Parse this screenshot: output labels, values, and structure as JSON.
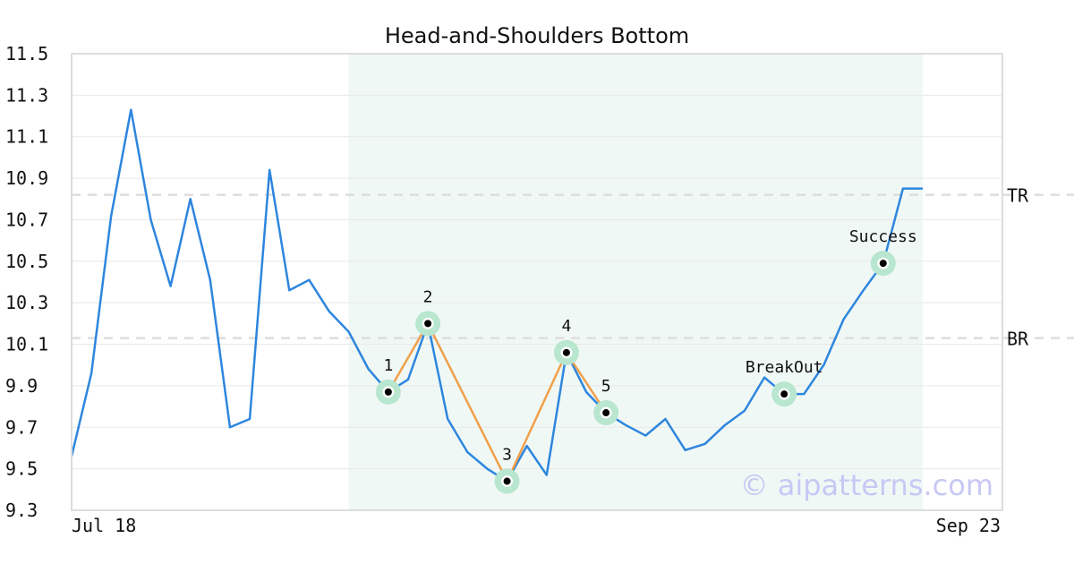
{
  "chart_data": {
    "type": "line",
    "title": "Head-and-Shoulders Bottom",
    "xlabel": "",
    "ylabel": "",
    "x_start_label": "Jul 18",
    "x_end_label": "Sep 23",
    "ylim": [
      9.3,
      11.5
    ],
    "yticks": [
      "9.3",
      "9.5",
      "9.7",
      "9.9",
      "10.1",
      "10.3",
      "10.5",
      "10.7",
      "10.9",
      "11.1",
      "11.3",
      "11.5"
    ],
    "grid": true,
    "colors": {
      "price": "#2e86de",
      "pattern": "#f0a04b",
      "highlight": "#f0f8f5",
      "marker_ring": "#b8e6cf",
      "ref_line": "#dddddd",
      "watermark": "#c8c8f4",
      "frame": "#dddddd"
    },
    "series": [
      {
        "values": [
          9.56,
          9.96,
          10.72,
          11.23,
          10.7,
          10.38,
          10.8,
          10.41,
          9.7,
          9.74,
          10.94,
          10.36,
          10.41,
          10.26,
          10.16,
          9.98,
          9.87,
          9.93,
          10.2,
          9.74,
          9.58,
          9.5,
          9.44,
          9.61,
          9.47,
          10.06,
          9.87,
          9.77,
          9.71,
          9.66,
          9.74,
          9.59,
          9.62,
          9.71,
          9.78,
          9.94,
          9.86,
          9.86,
          10.0,
          10.22,
          10.36,
          10.49,
          10.85,
          10.85
        ]
      }
    ],
    "highlight_range": [
      14,
      43
    ],
    "pattern_points": [
      {
        "label": "1",
        "index": 16,
        "value": 9.87
      },
      {
        "label": "2",
        "index": 18,
        "value": 10.2
      },
      {
        "label": "3",
        "index": 22,
        "value": 9.44
      },
      {
        "label": "4",
        "index": 25,
        "value": 10.06
      },
      {
        "label": "5",
        "index": 27,
        "value": 9.77
      }
    ],
    "event_points": [
      {
        "label": "BreakOut",
        "index": 36,
        "value": 9.86
      },
      {
        "label": "Success",
        "index": 41,
        "value": 10.49
      }
    ],
    "reference_lines": [
      {
        "label": "TR",
        "value": 10.82
      },
      {
        "label": "BR",
        "value": 10.13
      }
    ],
    "watermark": "© aipatterns.com"
  }
}
